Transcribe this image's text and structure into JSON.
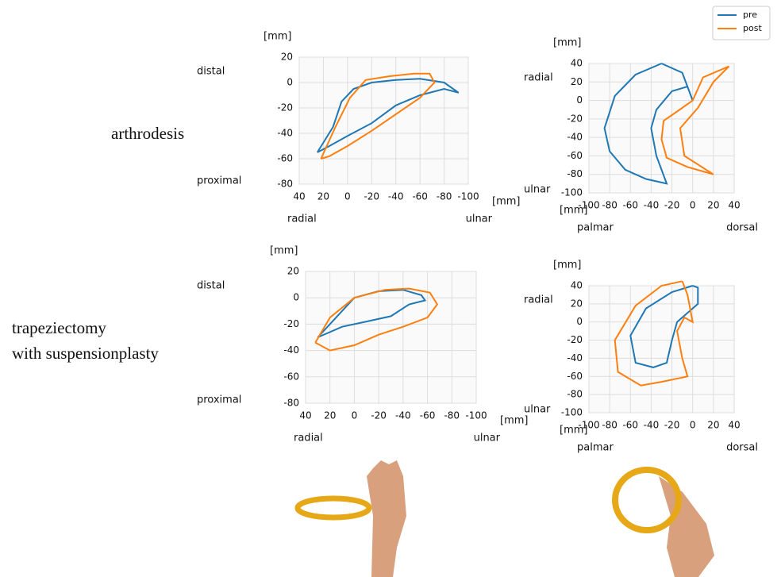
{
  "row_labels": [
    "arthrodesis",
    "trapeziectomy",
    "with suspensionplasty"
  ],
  "legend": {
    "series": [
      {
        "name": "pre",
        "color": "#1f77b4"
      },
      {
        "name": "post",
        "color": "#ff7f0e"
      }
    ]
  },
  "chart_data": [
    {
      "type": "line",
      "y_unit": "[mm]",
      "x_unit": "[mm]",
      "y_end_labels": [
        "distal",
        "proximal"
      ],
      "x_end_labels": [
        "radial",
        "ulnar"
      ],
      "xlim": [
        40,
        -100
      ],
      "xticks": [
        40,
        20,
        0,
        -20,
        -40,
        -60,
        -80,
        -100
      ],
      "ylim": [
        -80,
        20
      ],
      "yticks": [
        20,
        0,
        -20,
        -40,
        -60,
        -80
      ],
      "grid": true,
      "series": [
        {
          "name": "pre",
          "color": "#1f77b4",
          "x": [
            25,
            12,
            5,
            -5,
            -20,
            -40,
            -60,
            -80,
            -92,
            -80,
            -60,
            -40,
            -20,
            0,
            15,
            25
          ],
          "y": [
            -55,
            -35,
            -15,
            -5,
            0,
            2,
            3,
            0,
            -8,
            -5,
            -10,
            -18,
            -32,
            -42,
            -50,
            -55
          ]
        },
        {
          "name": "post",
          "color": "#ff7f0e",
          "x": [
            22,
            10,
            -2,
            -15,
            -35,
            -55,
            -68,
            -72,
            -60,
            -40,
            -20,
            0,
            15,
            22
          ],
          "y": [
            -60,
            -35,
            -12,
            2,
            5,
            7,
            7,
            0,
            -12,
            -25,
            -38,
            -50,
            -58,
            -60
          ]
        }
      ]
    },
    {
      "type": "line",
      "y_unit": "[mm]",
      "x_unit": "[mm]",
      "y_end_labels": [
        "radial",
        "ulnar"
      ],
      "x_end_labels": [
        "palmar",
        "dorsal"
      ],
      "xlim": [
        -100,
        40
      ],
      "xticks": [
        -100,
        -80,
        -60,
        -40,
        -20,
        0,
        20,
        40
      ],
      "ylim": [
        -100,
        40
      ],
      "yticks": [
        40,
        20,
        0,
        -20,
        -40,
        -60,
        -80,
        -100
      ],
      "grid": true,
      "series": [
        {
          "name": "pre",
          "color": "#1f77b4",
          "x": [
            -30,
            -55,
            -75,
            -85,
            -80,
            -65,
            -45,
            -25,
            -35,
            -40,
            -35,
            -20,
            -5,
            0,
            -10,
            -30
          ],
          "y": [
            40,
            28,
            5,
            -30,
            -55,
            -75,
            -85,
            -90,
            -60,
            -30,
            -10,
            10,
            15,
            0,
            30,
            40
          ]
        },
        {
          "name": "post",
          "color": "#ff7f0e",
          "x": [
            35,
            10,
            0,
            -15,
            -28,
            -30,
            -25,
            -5,
            20,
            -8,
            -12,
            5,
            20,
            35
          ],
          "y": [
            37,
            25,
            0,
            -12,
            -22,
            -42,
            -62,
            -72,
            -80,
            -60,
            -30,
            -8,
            20,
            37
          ]
        }
      ]
    },
    {
      "type": "line",
      "y_unit": "[mm]",
      "x_unit": "[mm]",
      "y_end_labels": [
        "distal",
        "proximal"
      ],
      "x_end_labels": [
        "radial",
        "ulnar"
      ],
      "xlim": [
        40,
        -100
      ],
      "xticks": [
        40,
        20,
        0,
        -20,
        -40,
        -60,
        -80,
        -100
      ],
      "ylim": [
        -80,
        20
      ],
      "yticks": [
        20,
        0,
        -20,
        -40,
        -60,
        -80
      ],
      "grid": true,
      "series": [
        {
          "name": "pre",
          "color": "#1f77b4",
          "x": [
            30,
            15,
            0,
            -20,
            -40,
            -55,
            -58,
            -45,
            -30,
            -10,
            10,
            30
          ],
          "y": [
            -30,
            -15,
            0,
            5,
            6,
            2,
            -2,
            -5,
            -14,
            -18,
            -22,
            -30
          ]
        },
        {
          "name": "post",
          "color": "#ff7f0e",
          "x": [
            32,
            20,
            0,
            -25,
            -45,
            -62,
            -68,
            -60,
            -40,
            -20,
            0,
            20,
            32
          ],
          "y": [
            -34,
            -15,
            0,
            6,
            7,
            4,
            -5,
            -15,
            -22,
            -28,
            -36,
            -40,
            -34
          ]
        }
      ]
    },
    {
      "type": "line",
      "y_unit": "[mm]",
      "x_unit": "[mm]",
      "y_end_labels": [
        "radial",
        "ulnar"
      ],
      "x_end_labels": [
        "palmar",
        "dorsal"
      ],
      "xlim": [
        -100,
        40
      ],
      "xticks": [
        -100,
        -80,
        -60,
        -40,
        -20,
        0,
        20,
        40
      ],
      "ylim": [
        -100,
        40
      ],
      "yticks": [
        40,
        20,
        0,
        -20,
        -40,
        -60,
        -80,
        -100
      ],
      "grid": true,
      "series": [
        {
          "name": "pre",
          "color": "#1f77b4",
          "x": [
            0,
            -20,
            -45,
            -60,
            -55,
            -38,
            -25,
            -20,
            -15,
            -5,
            5,
            5,
            0
          ],
          "y": [
            40,
            33,
            15,
            -15,
            -45,
            -50,
            -45,
            -20,
            0,
            10,
            20,
            38,
            40
          ]
        },
        {
          "name": "post",
          "color": "#ff7f0e",
          "x": [
            -10,
            -30,
            -55,
            -75,
            -72,
            -50,
            -30,
            -5,
            -10,
            -15,
            -8,
            0,
            -5,
            -10
          ],
          "y": [
            45,
            40,
            18,
            -20,
            -55,
            -70,
            -66,
            -60,
            -40,
            -10,
            5,
            0,
            30,
            45
          ]
        }
      ]
    }
  ]
}
